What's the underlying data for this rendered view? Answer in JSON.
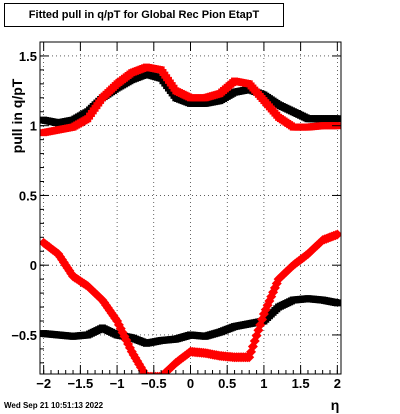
{
  "title": "Fitted pull in q/pT for Global Rec Pion EtapT",
  "timestamp": "Wed Sep 21 10:51:13 2022",
  "chart_data": {
    "type": "scatter",
    "title": "Fitted pull in q/pT for Global Rec Pion EtapT",
    "xlabel": "η",
    "ylabel": "pull in q/pT",
    "xlim": [
      -2.05,
      2.05
    ],
    "ylim": [
      -0.78,
      1.6
    ],
    "x_ticks": [
      -2,
      -1.5,
      -1,
      -0.5,
      0,
      0.5,
      1,
      1.5,
      2
    ],
    "x_tick_labels": [
      "−2",
      "−1.5",
      "−1",
      "−0.5",
      "0",
      "0.5",
      "1",
      "1.5",
      "2"
    ],
    "y_ticks": [
      -0.5,
      0,
      0.5,
      1,
      1.5
    ],
    "y_tick_labels": [
      "−0.5",
      "0",
      "0.5",
      "1",
      "1.5"
    ],
    "grid": true,
    "series": [
      {
        "marker": "square",
        "color": "#000000",
        "x": [
          -2.0,
          -1.8,
          -1.6,
          -1.4,
          -1.2,
          -1.0,
          -0.8,
          -0.6,
          -0.4,
          -0.2,
          0.0,
          0.2,
          0.4,
          0.6,
          0.8,
          1.0,
          1.2,
          1.4,
          1.6,
          1.8,
          2.0
        ],
        "y": [
          1.04,
          1.02,
          1.04,
          1.1,
          1.2,
          1.27,
          1.33,
          1.37,
          1.34,
          1.2,
          1.16,
          1.16,
          1.18,
          1.24,
          1.26,
          1.22,
          1.15,
          1.1,
          1.05,
          1.05,
          1.05
        ]
      },
      {
        "marker": "square",
        "color": "#ff0000",
        "x": [
          -2.0,
          -1.8,
          -1.6,
          -1.4,
          -1.2,
          -1.0,
          -0.8,
          -0.6,
          -0.4,
          -0.2,
          0.0,
          0.2,
          0.4,
          0.6,
          0.8,
          1.0,
          1.2,
          1.4,
          1.6,
          1.8,
          2.0
        ],
        "y": [
          0.95,
          0.97,
          0.99,
          1.05,
          1.2,
          1.3,
          1.38,
          1.42,
          1.4,
          1.25,
          1.2,
          1.2,
          1.23,
          1.32,
          1.3,
          1.18,
          1.06,
          0.99,
          0.99,
          1.0,
          1.0
        ]
      },
      {
        "marker": "square",
        "color": "#000000",
        "x": [
          -2.0,
          -1.8,
          -1.6,
          -1.4,
          -1.2,
          -1.0,
          -0.8,
          -0.6,
          -0.4,
          -0.2,
          0.0,
          0.2,
          0.4,
          0.6,
          0.8,
          1.0,
          1.2,
          1.4,
          1.6,
          1.8,
          2.0
        ],
        "y": [
          -0.49,
          -0.5,
          -0.51,
          -0.5,
          -0.45,
          -0.5,
          -0.52,
          -0.56,
          -0.54,
          -0.53,
          -0.5,
          -0.51,
          -0.48,
          -0.44,
          -0.42,
          -0.4,
          -0.3,
          -0.25,
          -0.24,
          -0.25,
          -0.27
        ]
      },
      {
        "marker": "diamond",
        "color": "#ff0000",
        "x": [
          -2.0,
          -1.8,
          -1.6,
          -1.4,
          -1.2,
          -1.0,
          -0.8,
          -0.6,
          -0.4,
          -0.2,
          0.0,
          0.2,
          0.4,
          0.6,
          0.8,
          1.0,
          1.2,
          1.4,
          1.6,
          1.8,
          2.0
        ],
        "y": [
          0.16,
          0.08,
          -0.08,
          -0.15,
          -0.25,
          -0.4,
          -0.62,
          -0.8,
          -0.8,
          -0.7,
          -0.62,
          -0.63,
          -0.65,
          -0.66,
          -0.66,
          -0.35,
          -0.1,
          0.0,
          0.08,
          0.18,
          0.22
        ]
      }
    ]
  }
}
